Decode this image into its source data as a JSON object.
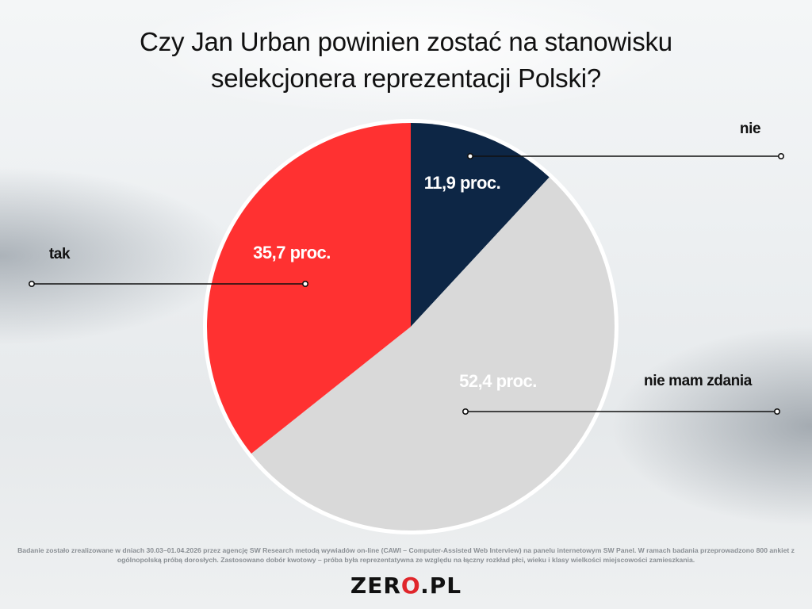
{
  "title": {
    "line1": "Czy Jan Urban powinien zostać na stanowisku",
    "line2": "selekcjonera reprezentacji Polski?"
  },
  "chart_data": {
    "type": "pie",
    "slices": [
      {
        "label": "nie",
        "value": 11.9,
        "value_text": "11,9 proc.",
        "color": "#0d2645",
        "text_color": "#ffffff"
      },
      {
        "label": "nie mam zdania",
        "value": 52.4,
        "value_text": "52,4 proc.",
        "color": "#d9d9d9",
        "text_color": "#ffffff"
      },
      {
        "label": "tak",
        "value": 35.7,
        "value_text": "35,7 proc.",
        "color": "#ff3131",
        "text_color": "#ffffff"
      }
    ],
    "start": "12 o'clock",
    "direction": "clockwise"
  },
  "footnote": "Badanie zostało zrealizowane w dniach 30.03–01.04.2026 przez agencję SW Research metodą wywiadów on-line (CAWI – Computer-Assisted Web Interview) na panelu internetowym SW Panel. W ramach badania przeprowadzono 800 ankiet z ogólnopolską próbą dorosłych. Zastosowano dobór kwotowy – próba była reprezentatywna ze względu na łączny rozkład płci, wieku i klasy wielkości miejscowości zamieszkania.",
  "logo": {
    "part1": "ZER",
    "mark": "O",
    "part2": ".PL",
    "accent": "#e0262b"
  }
}
